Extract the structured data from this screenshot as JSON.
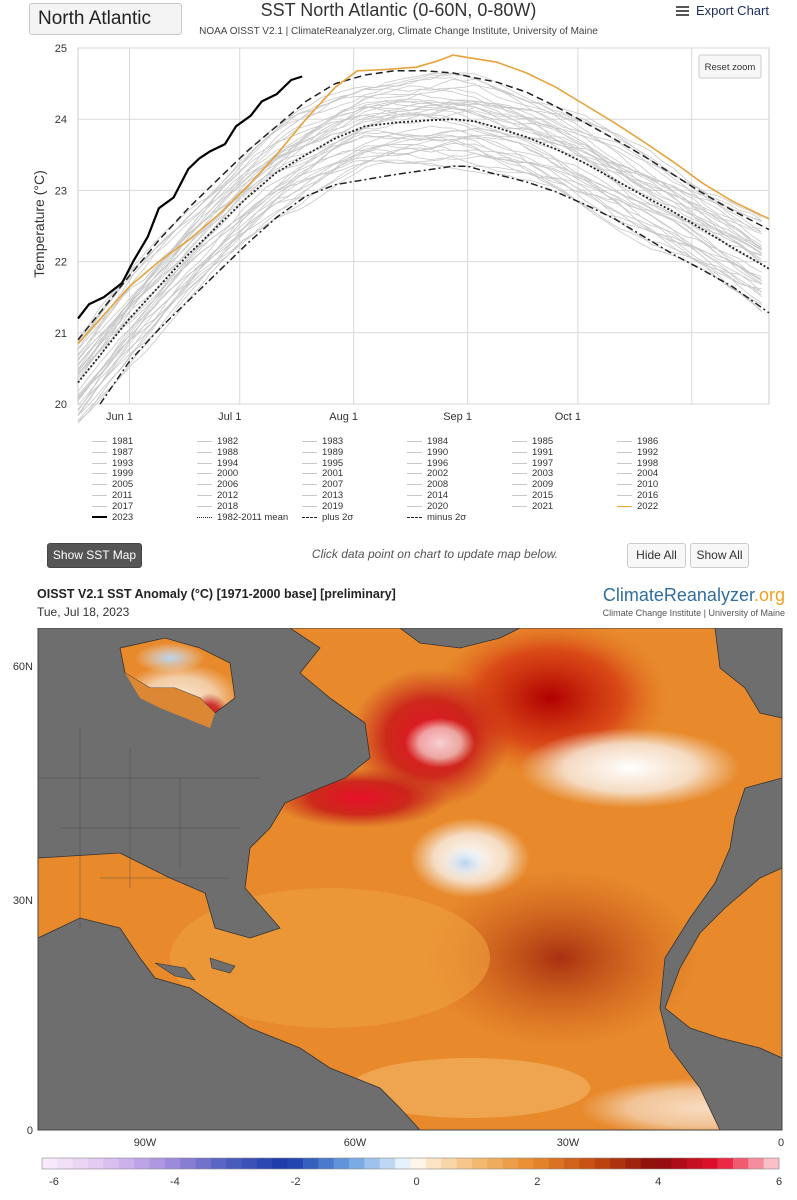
{
  "region_select": {
    "value": "North Atlantic"
  },
  "header": {
    "title": "SST North Atlantic (0-60N, 0-80W)",
    "subtitle": "NOAA OISST V2.1 | ClimateReanalyzer.org, Climate Change Institute, University of Maine",
    "export_label": "Export Chart",
    "reset_zoom_label": "Reset zoom"
  },
  "chart_data": {
    "type": "line",
    "title": "SST North Atlantic (0-60N, 0-80W)",
    "subtitle": "NOAA OISST V2.1 | ClimateReanalyzer.org, Climate Change Institute, University of Maine",
    "ylabel": "Temperature (°C)",
    "xlabel": "",
    "ylim": [
      20,
      25
    ],
    "yticks": [
      20,
      21,
      22,
      23,
      24,
      25
    ],
    "xlim_day_of_year": [
      138,
      326
    ],
    "xticks": [
      {
        "label": "Jun 1",
        "day_of_year": 152
      },
      {
        "label": "Jul 1",
        "day_of_year": 182
      },
      {
        "label": "Aug 1",
        "day_of_year": 213
      },
      {
        "label": "Sep 1",
        "day_of_year": 244
      },
      {
        "label": "Oct 1",
        "day_of_year": 274
      }
    ],
    "grid": true,
    "legend_position": "bottom",
    "background_years_color": "#c8c8c8",
    "background_years": [
      "1981",
      "1982",
      "1983",
      "1984",
      "1985",
      "1986",
      "1987",
      "1988",
      "1989",
      "1990",
      "1991",
      "1992",
      "1993",
      "1994",
      "1995",
      "1996",
      "1997",
      "1998",
      "1999",
      "2000",
      "2001",
      "2002",
      "2003",
      "2004",
      "2005",
      "2006",
      "2007",
      "2008",
      "2009",
      "2010",
      "2011",
      "2012",
      "2013",
      "2014",
      "2015",
      "2016",
      "2017",
      "2018",
      "2019",
      "2020",
      "2021"
    ],
    "series": [
      {
        "name": "2023",
        "color": "#000000",
        "style": "solid",
        "width": 2.2,
        "x": [
          138,
          141,
          145,
          150,
          153,
          157,
          160,
          164,
          168,
          171,
          174,
          178,
          181,
          185,
          188,
          192,
          196,
          199
        ],
        "y": [
          21.2,
          21.4,
          21.5,
          21.7,
          22.0,
          22.35,
          22.75,
          22.9,
          23.3,
          23.45,
          23.55,
          23.65,
          23.9,
          24.05,
          24.25,
          24.35,
          24.55,
          24.6
        ]
      },
      {
        "name": "1982-2011 mean",
        "color": "#222222",
        "style": "dotted",
        "width": 1.8,
        "x": [
          138,
          145,
          152,
          160,
          168,
          176,
          184,
          192,
          200,
          208,
          216,
          224,
          232,
          240,
          246,
          252,
          260,
          268,
          276,
          284,
          292,
          300,
          308,
          316,
          326
        ],
        "y": [
          20.3,
          20.75,
          21.2,
          21.65,
          22.1,
          22.5,
          22.9,
          23.25,
          23.5,
          23.73,
          23.9,
          23.95,
          23.98,
          24.0,
          23.97,
          23.88,
          23.75,
          23.58,
          23.38,
          23.15,
          22.92,
          22.7,
          22.45,
          22.2,
          21.9
        ]
      },
      {
        "name": "plus 2σ",
        "color": "#222222",
        "style": "dashed",
        "width": 1.5,
        "x": [
          138,
          145,
          152,
          160,
          168,
          176,
          184,
          192,
          200,
          208,
          216,
          224,
          232,
          240,
          246,
          252,
          260,
          268,
          276,
          284,
          292,
          300,
          308,
          316,
          326
        ],
        "y": [
          20.9,
          21.35,
          21.8,
          22.3,
          22.75,
          23.15,
          23.55,
          23.9,
          24.25,
          24.5,
          24.62,
          24.68,
          24.68,
          24.65,
          24.58,
          24.52,
          24.38,
          24.18,
          23.95,
          23.72,
          23.48,
          23.22,
          22.96,
          22.72,
          22.45
        ]
      },
      {
        "name": "minus 2σ",
        "color": "#222222",
        "style": "dashdot",
        "width": 1.5,
        "x": [
          144,
          152,
          160,
          168,
          176,
          184,
          192,
          200,
          208,
          216,
          224,
          232,
          240,
          244,
          250,
          260,
          268,
          276,
          284,
          292,
          300,
          308,
          316,
          326
        ],
        "y": [
          20.0,
          20.6,
          21.05,
          21.45,
          21.85,
          22.25,
          22.62,
          22.92,
          23.08,
          23.15,
          23.22,
          23.28,
          23.34,
          23.34,
          23.25,
          23.12,
          22.98,
          22.8,
          22.6,
          22.35,
          22.1,
          21.88,
          21.65,
          21.28
        ]
      },
      {
        "name": "2022",
        "color": "#e8a33c",
        "style": "solid",
        "width": 1.6,
        "x": [
          138,
          145,
          152,
          160,
          168,
          176,
          184,
          192,
          200,
          208,
          214,
          222,
          230,
          236,
          240,
          246,
          252,
          260,
          268,
          276,
          284,
          292,
          300,
          308,
          316,
          326
        ],
        "y": [
          20.85,
          21.25,
          21.65,
          22.0,
          22.3,
          22.65,
          23.05,
          23.5,
          24.0,
          24.45,
          24.68,
          24.7,
          24.73,
          24.82,
          24.9,
          24.85,
          24.8,
          24.65,
          24.45,
          24.2,
          23.95,
          23.68,
          23.4,
          23.1,
          22.85,
          22.6
        ]
      }
    ]
  },
  "legend_grid": [
    [
      "1981",
      "1982",
      "1983",
      "1984",
      "1985",
      "1986"
    ],
    [
      "1987",
      "1988",
      "1989",
      "1990",
      "1991",
      "1992"
    ],
    [
      "1993",
      "1994",
      "1995",
      "1996",
      "1997",
      "1998"
    ],
    [
      "1999",
      "2000",
      "2001",
      "2002",
      "2003",
      "2004"
    ],
    [
      "2005",
      "2006",
      "2007",
      "2008",
      "2009",
      "2010"
    ],
    [
      "2011",
      "2012",
      "2013",
      "2014",
      "2015",
      "2016"
    ],
    [
      "2017",
      "2018",
      "2019",
      "2020",
      "2021",
      "2022"
    ],
    [
      "2023",
      "1982-2011 mean",
      "plus 2σ",
      "minus 2σ"
    ]
  ],
  "controls": {
    "show_map_label": "Show SST Map",
    "hint": "Click data point on chart to update map below.",
    "hide_all_label": "Hide All",
    "show_all_label": "Show All"
  },
  "map": {
    "title": "OISST V2.1 SST Anomaly (°C) [1971-2000 base] [preliminary]",
    "date": "Tue, Jul 18, 2023",
    "logo_main": "ClimateReanalyzer",
    "logo_suffix": ".org",
    "logo_sub": "Climate Change Institute | University of Maine",
    "lat_labels": [
      "60N",
      "30N",
      "0"
    ],
    "lon_labels": [
      "90W",
      "60W",
      "30W",
      "0"
    ],
    "land_color": "#6e6e6e",
    "colorbar_ticks": [
      "-6",
      "-4",
      "-2",
      "0",
      "2",
      "4",
      "6"
    ],
    "colorbar_range": [
      -6,
      6
    ]
  }
}
